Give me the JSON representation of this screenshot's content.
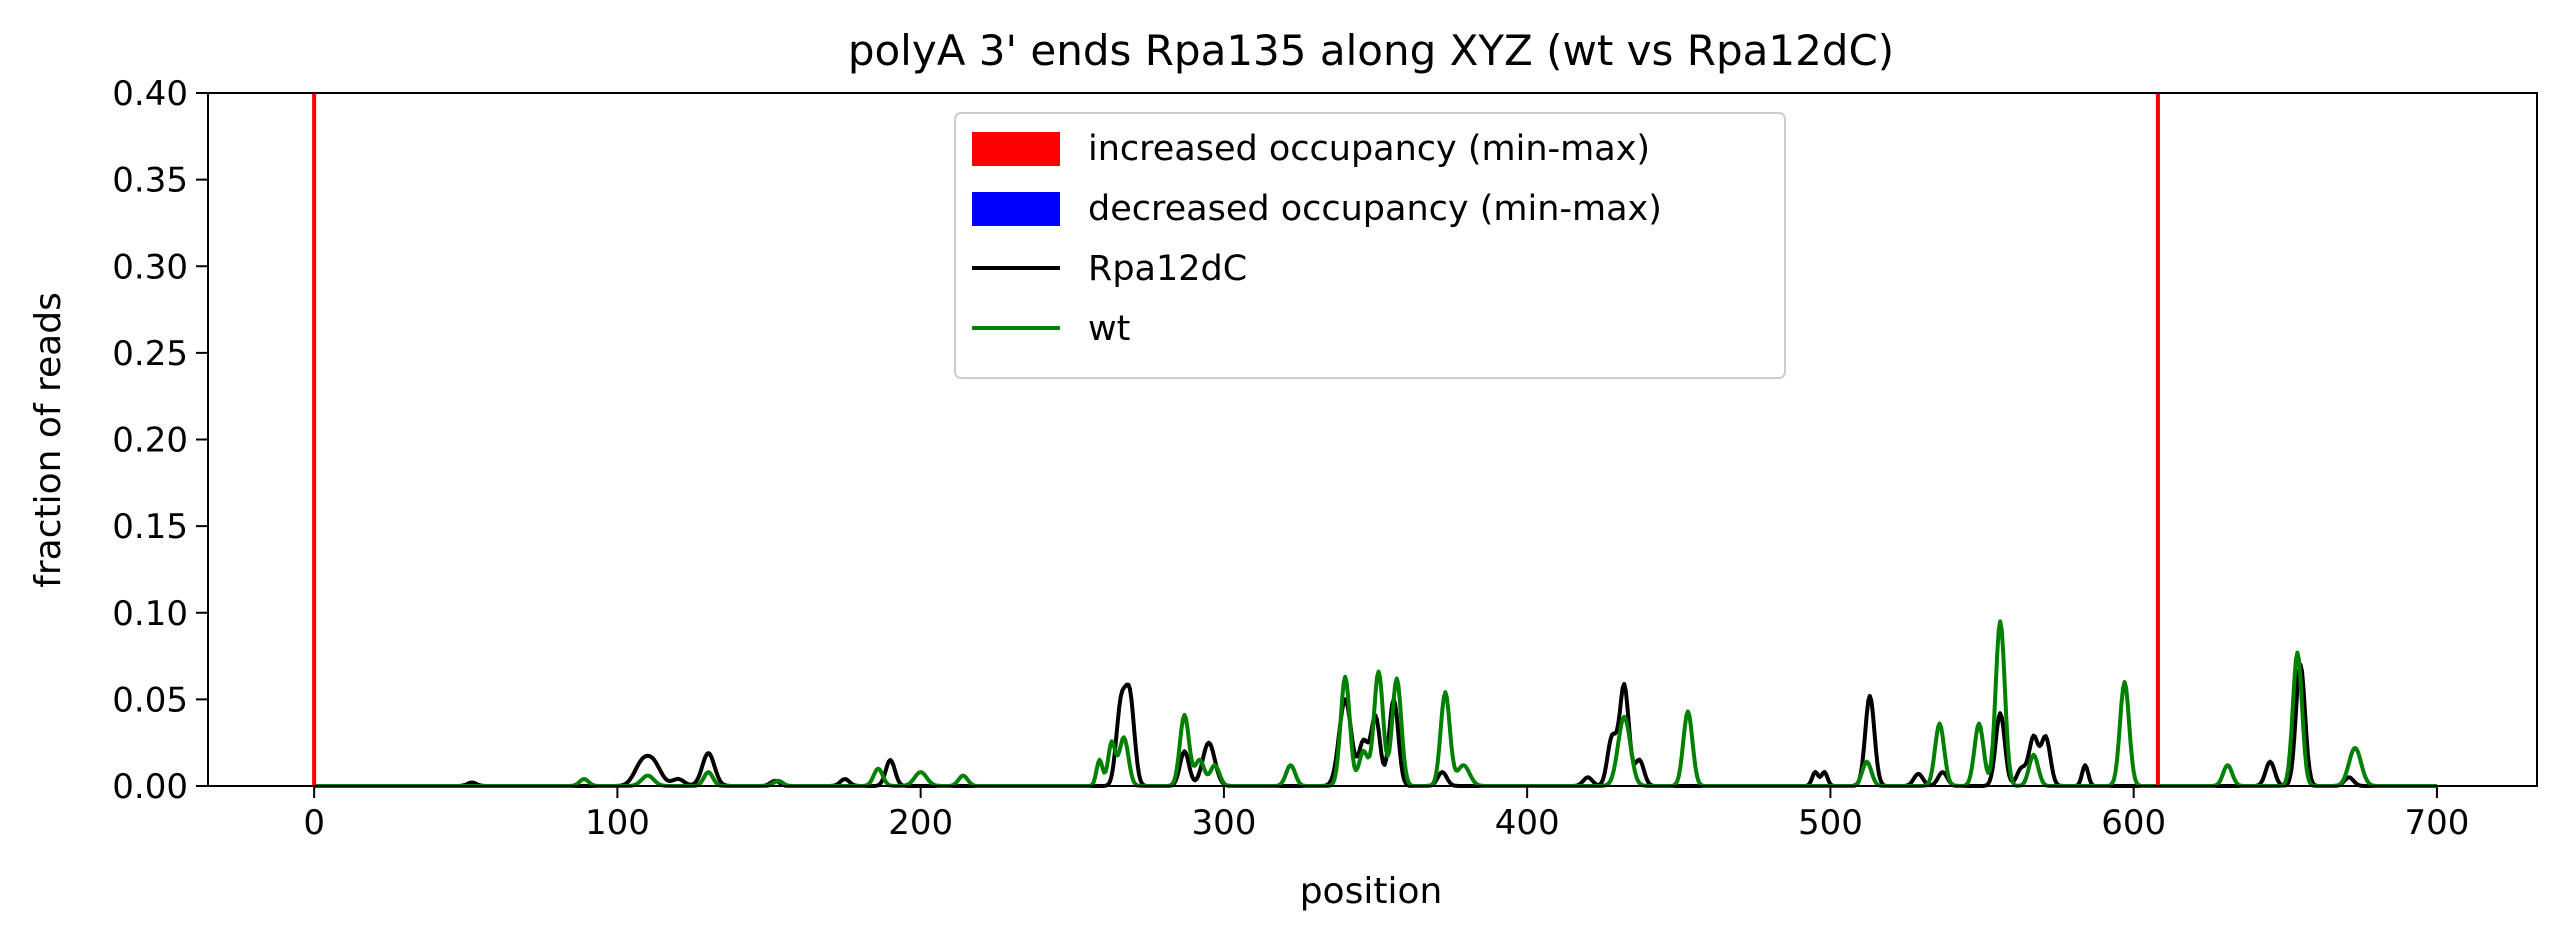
{
  "chart_data": {
    "type": "line",
    "title": "polyA 3' ends Rpa135 along XYZ (wt vs Rpa12dC)",
    "xlabel": "position",
    "ylabel": "fraction of reads",
    "xlim": [
      -35,
      733
    ],
    "ylim": [
      0,
      0.4
    ],
    "xticks": [
      0,
      100,
      200,
      300,
      400,
      500,
      600,
      700
    ],
    "yticks": [
      0.0,
      0.05,
      0.1,
      0.15,
      0.2,
      0.25,
      0.3,
      0.35,
      0.4
    ],
    "xtick_labels": [
      "0",
      "100",
      "200",
      "300",
      "400",
      "500",
      "600",
      "700"
    ],
    "ytick_labels": [
      "0.00",
      "0.05",
      "0.10",
      "0.15",
      "0.20",
      "0.25",
      "0.30",
      "0.35",
      "0.40"
    ],
    "grid": false,
    "legend_position": "top-center",
    "vlines": [
      {
        "x": 0,
        "color": "#ff0000"
      },
      {
        "x": 608,
        "color": "#ff0000"
      }
    ],
    "legend": [
      {
        "label": "increased occupancy (min-max)",
        "kind": "patch",
        "color": "#ff0000"
      },
      {
        "label": "decreased occupancy (min-max)",
        "kind": "patch",
        "color": "#0000ff"
      },
      {
        "label": "Rpa12dC",
        "kind": "line",
        "color": "#000000"
      },
      {
        "label": "wt",
        "kind": "line",
        "color": "#008000"
      }
    ],
    "series": [
      {
        "name": "Rpa12dC",
        "color": "#000000",
        "x_range": [
          0,
          700
        ],
        "peaks": [
          [
            52,
            0.002,
            1.5
          ],
          [
            108,
            0.012,
            2.5
          ],
          [
            112,
            0.012,
            2.5
          ],
          [
            120,
            0.004,
            2
          ],
          [
            130,
            0.019,
            2
          ],
          [
            152,
            0.003,
            1.5
          ],
          [
            175,
            0.004,
            1.5
          ],
          [
            190,
            0.015,
            1.5
          ],
          [
            266,
            0.045,
            1.5
          ],
          [
            269,
            0.05,
            1.5
          ],
          [
            287,
            0.02,
            1.5
          ],
          [
            295,
            0.025,
            2
          ],
          [
            340,
            0.05,
            2
          ],
          [
            346,
            0.025,
            1.5
          ],
          [
            350,
            0.04,
            1.5
          ],
          [
            356,
            0.05,
            1.5
          ],
          [
            372,
            0.008,
            1.5
          ],
          [
            420,
            0.005,
            1.5
          ],
          [
            428,
            0.028,
            1.5
          ],
          [
            432,
            0.058,
            1.5
          ],
          [
            437,
            0.015,
            1.5
          ],
          [
            495,
            0.008,
            1
          ],
          [
            498,
            0.008,
            1
          ],
          [
            513,
            0.052,
            1.5
          ],
          [
            529,
            0.007,
            1.5
          ],
          [
            537,
            0.008,
            1.5
          ],
          [
            556,
            0.042,
            1.5
          ],
          [
            563,
            0.01,
            1.5
          ],
          [
            567,
            0.028,
            1.5
          ],
          [
            571,
            0.028,
            1.5
          ],
          [
            584,
            0.012,
            1
          ],
          [
            645,
            0.014,
            1.5
          ],
          [
            655,
            0.07,
            1.5
          ],
          [
            671,
            0.005,
            1.5
          ]
        ]
      },
      {
        "name": "wt",
        "color": "#008000",
        "x_range": [
          0,
          700
        ],
        "peaks": [
          [
            89,
            0.004,
            1.5
          ],
          [
            110,
            0.006,
            2
          ],
          [
            130,
            0.008,
            1.5
          ],
          [
            153,
            0.003,
            1.5
          ],
          [
            186,
            0.01,
            1.5
          ],
          [
            200,
            0.008,
            2
          ],
          [
            214,
            0.006,
            1.5
          ],
          [
            259,
            0.015,
            1
          ],
          [
            263,
            0.025,
            1.2
          ],
          [
            267,
            0.028,
            1.5
          ],
          [
            287,
            0.041,
            1.5
          ],
          [
            292,
            0.015,
            1.5
          ],
          [
            297,
            0.012,
            1.5
          ],
          [
            322,
            0.012,
            1.5
          ],
          [
            340,
            0.063,
            1.5
          ],
          [
            346,
            0.02,
            1.5
          ],
          [
            351,
            0.066,
            1.5
          ],
          [
            357,
            0.062,
            1.5
          ],
          [
            373,
            0.054,
            1.5
          ],
          [
            379,
            0.012,
            2
          ],
          [
            432,
            0.04,
            2
          ],
          [
            453,
            0.043,
            1.5
          ],
          [
            512,
            0.014,
            1.5
          ],
          [
            536,
            0.036,
            1.5
          ],
          [
            549,
            0.036,
            1.5
          ],
          [
            556,
            0.095,
            1.5
          ],
          [
            567,
            0.018,
            1.5
          ],
          [
            597,
            0.06,
            1.5
          ],
          [
            631,
            0.012,
            1.5
          ],
          [
            654,
            0.077,
            1.5
          ],
          [
            673,
            0.022,
            2
          ]
        ]
      }
    ]
  }
}
